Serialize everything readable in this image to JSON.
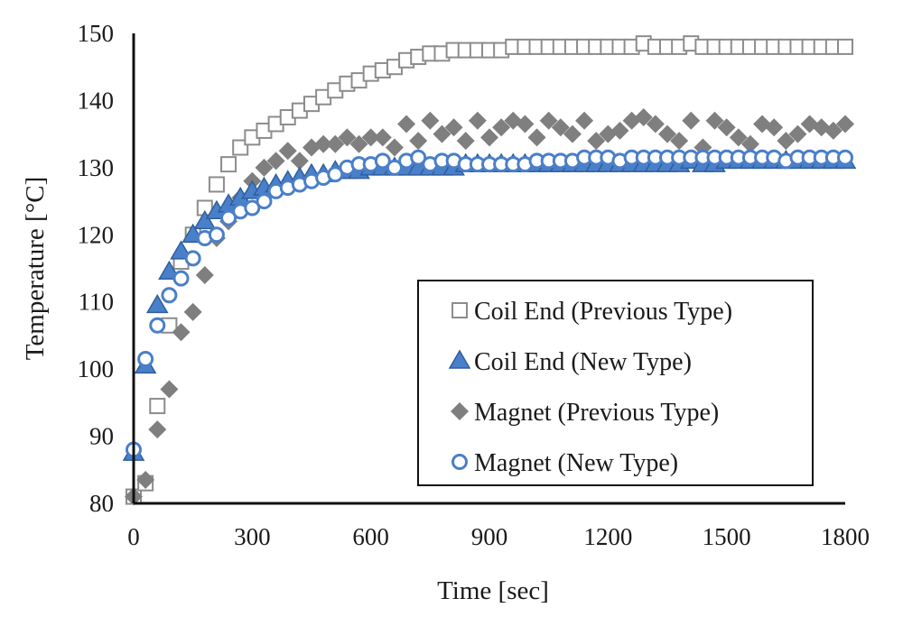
{
  "chart_data": {
    "type": "scatter",
    "title": "",
    "xlabel": "Time [sec]",
    "ylabel": "Temperature [°C]",
    "xlim": [
      0,
      1800
    ],
    "ylim": [
      80,
      150
    ],
    "xticks": [
      0,
      300,
      600,
      900,
      1200,
      1500,
      1800
    ],
    "yticks": [
      80,
      90,
      100,
      110,
      120,
      130,
      140,
      150
    ],
    "grid": false,
    "legend_position": "bottom-right",
    "series": [
      {
        "name": "Coil End (Previous Type)",
        "marker": "square-open",
        "color": "#7f7f7f",
        "x": [
          0,
          30,
          60,
          90,
          120,
          150,
          180,
          210,
          240,
          270,
          300,
          330,
          360,
          390,
          420,
          450,
          480,
          510,
          540,
          570,
          600,
          630,
          660,
          690,
          720,
          750,
          780,
          810,
          840,
          870,
          900,
          930,
          960,
          990,
          1020,
          1050,
          1080,
          1110,
          1140,
          1170,
          1200,
          1230,
          1260,
          1290,
          1320,
          1350,
          1380,
          1410,
          1440,
          1470,
          1500,
          1530,
          1560,
          1590,
          1620,
          1650,
          1680,
          1710,
          1740,
          1770,
          1800
        ],
        "y": [
          81,
          83,
          94.5,
          106.5,
          116,
          120,
          124,
          127.5,
          130.5,
          133,
          134.5,
          135.5,
          136.5,
          137.5,
          138.5,
          139.5,
          140.5,
          141.5,
          142.5,
          143,
          144,
          144.5,
          145,
          146,
          146.5,
          147,
          147,
          147.5,
          147.5,
          147.5,
          147.5,
          147.5,
          148,
          148,
          148,
          148,
          148,
          148,
          148,
          148,
          148,
          148,
          148,
          148.5,
          148,
          148,
          148,
          148.5,
          148,
          148,
          148,
          148,
          148,
          148,
          148,
          148,
          148,
          148,
          148,
          148,
          148
        ]
      },
      {
        "name": "Coil End (New Type)",
        "marker": "triangle-filled",
        "color": "#4a7fc9",
        "x": [
          0,
          30,
          60,
          90,
          120,
          150,
          180,
          210,
          240,
          270,
          300,
          330,
          360,
          390,
          420,
          450,
          480,
          510,
          540,
          570,
          600,
          630,
          660,
          690,
          720,
          750,
          780,
          810,
          840,
          870,
          900,
          930,
          960,
          990,
          1020,
          1050,
          1080,
          1110,
          1140,
          1170,
          1200,
          1230,
          1260,
          1290,
          1320,
          1350,
          1380,
          1410,
          1440,
          1470,
          1500,
          1530,
          1560,
          1590,
          1620,
          1650,
          1680,
          1710,
          1740,
          1770,
          1800
        ],
        "y": [
          87.5,
          100.5,
          109.5,
          114.5,
          117.5,
          120,
          122,
          123.5,
          124.5,
          125.5,
          126.5,
          127,
          127.5,
          128,
          128.5,
          129,
          129,
          129.5,
          129.5,
          129.5,
          130,
          130,
          130,
          130,
          130,
          130,
          130,
          130,
          130.5,
          130.5,
          130.5,
          130.5,
          130.5,
          130.5,
          130.5,
          130.5,
          130.5,
          130.5,
          130.5,
          130.5,
          130.5,
          130.5,
          130.5,
          130.5,
          130.5,
          130.5,
          130.5,
          131,
          130.5,
          130.5,
          131,
          131,
          131,
          131,
          131,
          131,
          131,
          131,
          131,
          131,
          131
        ]
      },
      {
        "name": "Magnet (Previous Type)",
        "marker": "diamond-filled",
        "color": "#7f7f7f",
        "x": [
          0,
          30,
          60,
          90,
          120,
          150,
          180,
          210,
          240,
          270,
          300,
          330,
          360,
          390,
          420,
          450,
          480,
          510,
          540,
          570,
          600,
          630,
          660,
          690,
          720,
          750,
          780,
          810,
          840,
          870,
          900,
          930,
          960,
          990,
          1020,
          1050,
          1080,
          1110,
          1140,
          1170,
          1200,
          1230,
          1260,
          1290,
          1320,
          1350,
          1380,
          1410,
          1440,
          1470,
          1500,
          1530,
          1560,
          1590,
          1620,
          1650,
          1680,
          1710,
          1740,
          1770,
          1800
        ],
        "y": [
          81,
          83.5,
          91,
          97,
          105.5,
          108.5,
          114,
          119.5,
          122,
          125.5,
          128,
          130,
          131,
          132.5,
          131,
          133,
          133.5,
          133.5,
          134.5,
          133.5,
          134.5,
          134.5,
          133,
          136.5,
          134,
          137,
          135,
          136,
          134,
          137,
          134.5,
          136,
          137,
          136.5,
          134.5,
          137,
          136,
          135,
          137,
          134,
          135,
          135.5,
          137,
          137.5,
          136.5,
          135,
          134,
          137,
          133,
          137,
          136,
          134.5,
          133.5,
          136.5,
          136,
          134,
          135,
          136.5,
          136,
          135.5,
          136.5
        ]
      },
      {
        "name": "Magnet (New Type)",
        "marker": "circle-open",
        "color": "#4a7fc9",
        "x": [
          0,
          30,
          60,
          90,
          120,
          150,
          180,
          210,
          240,
          270,
          300,
          330,
          360,
          390,
          420,
          450,
          480,
          510,
          540,
          570,
          600,
          630,
          660,
          690,
          720,
          750,
          780,
          810,
          840,
          870,
          900,
          930,
          960,
          990,
          1020,
          1050,
          1080,
          1110,
          1140,
          1170,
          1200,
          1230,
          1260,
          1290,
          1320,
          1350,
          1380,
          1410,
          1440,
          1470,
          1500,
          1530,
          1560,
          1590,
          1620,
          1650,
          1680,
          1710,
          1740,
          1770,
          1800
        ],
        "y": [
          88,
          101.5,
          106.5,
          111,
          113.5,
          116.5,
          119.5,
          120,
          122.5,
          123.5,
          124,
          125,
          126.5,
          127,
          127.5,
          128,
          128.5,
          129,
          130,
          130.5,
          130.5,
          131,
          130,
          131,
          131.5,
          130.5,
          131,
          131,
          130.5,
          130.5,
          130.5,
          130.5,
          130.5,
          130.5,
          131,
          131,
          131,
          131,
          131.5,
          131.5,
          131.5,
          131,
          131.5,
          131.5,
          131.5,
          131.5,
          131.5,
          131.5,
          131.5,
          131.5,
          131.5,
          131.5,
          131.5,
          131.5,
          131.5,
          131,
          131.5,
          131.5,
          131.5,
          131.5,
          131.5
        ]
      }
    ]
  }
}
